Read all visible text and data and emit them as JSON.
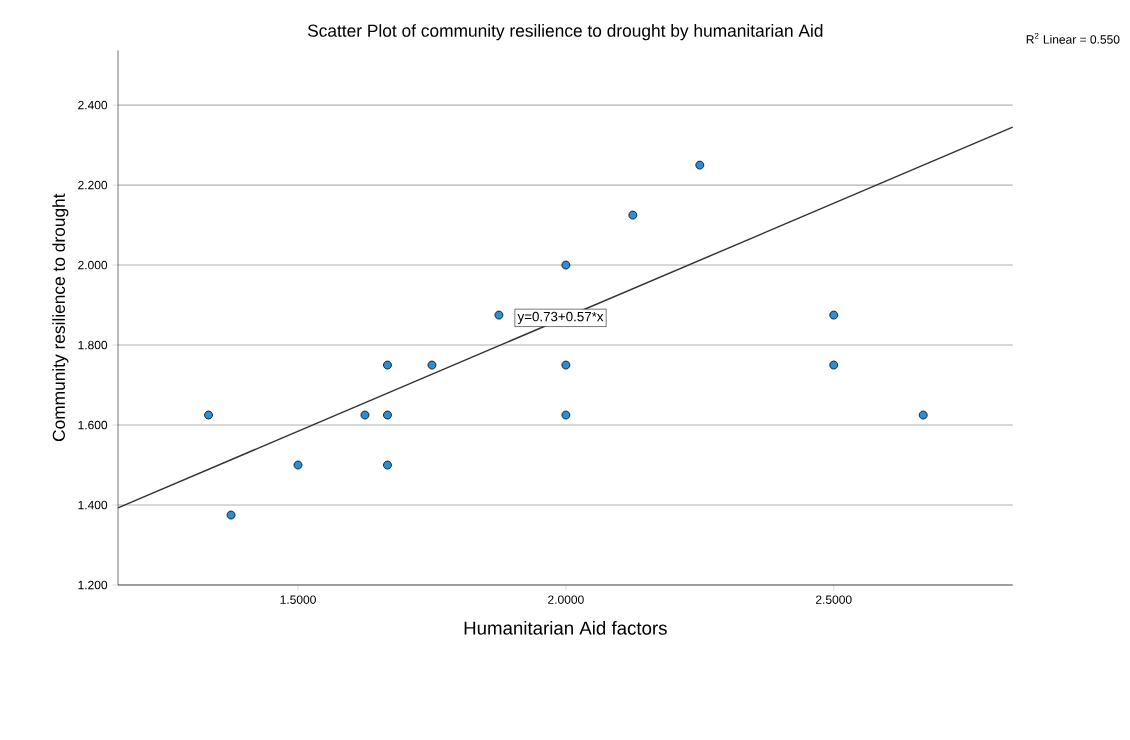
{
  "chart_data": {
    "type": "scatter",
    "title": "Scatter Plot of community resilience to drought by humanitarian Aid",
    "xlabel": "Humanitarian Aid factors",
    "ylabel": "Community resilience to drought",
    "annotations": [
      "R$^{2}$ Linear = 0.550",
      {
        "text": "y=0.73+0.57*x",
        "x": 1.99,
        "y": 1.868
      }
    ],
    "xlim": [
      1.164,
      2.834
    ],
    "ylim": [
      1.2,
      2.537
    ],
    "xticks": [
      {
        "value": 1.5,
        "label": "1.5000"
      },
      {
        "value": 2.0,
        "label": "2.0000"
      },
      {
        "value": 2.5,
        "label": "2.5000"
      }
    ],
    "yticks": [
      {
        "value": 1.2,
        "label": "1.200"
      },
      {
        "value": 1.4,
        "label": "1.400"
      },
      {
        "value": 1.6,
        "label": "1.600"
      },
      {
        "value": 1.8,
        "label": "1.800"
      },
      {
        "value": 2.0,
        "label": "2.000"
      },
      {
        "value": 2.2,
        "label": "2.200"
      },
      {
        "value": 2.4,
        "label": "2.400"
      }
    ],
    "grid": "y",
    "series": [
      {
        "marker": "circle",
        "color": "#2b8fd6",
        "x": [
          1.333,
          1.375,
          1.5,
          1.625,
          1.667,
          1.667,
          1.667,
          1.75,
          1.875,
          2.0,
          2.0,
          2.0,
          2.125,
          2.25,
          2.5,
          2.5,
          2.667
        ],
        "values": [
          1.625,
          1.375,
          1.5,
          1.625,
          1.75,
          1.625,
          1.5,
          1.75,
          1.875,
          2.0,
          1.75,
          1.625,
          2.125,
          2.25,
          1.875,
          1.75,
          1.625
        ]
      },
      {
        "type": "line",
        "marker": "none",
        "color": "#333333",
        "line_style": "solid",
        "x": [
          1.164,
          2.834
        ],
        "values": [
          1.393,
          2.345
        ]
      }
    ]
  }
}
